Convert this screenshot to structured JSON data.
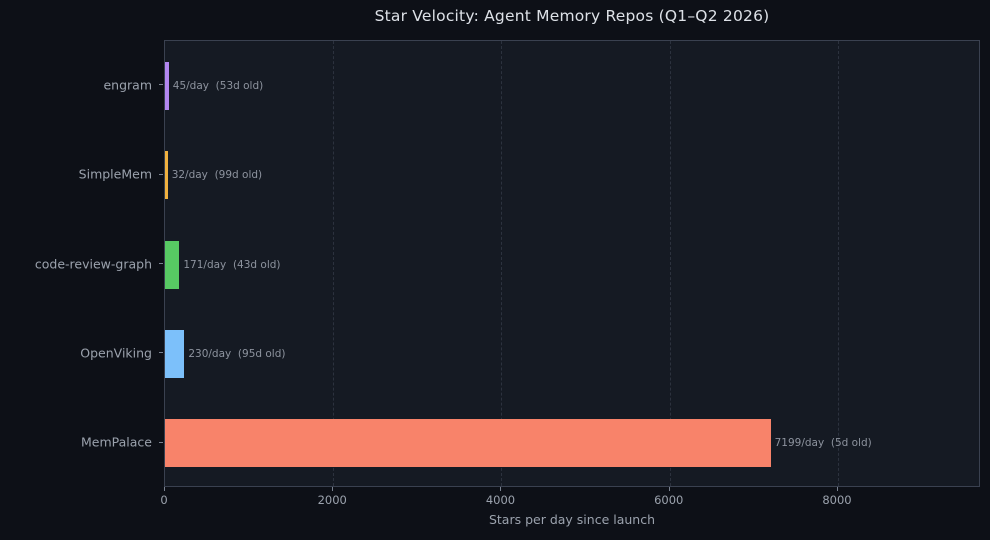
{
  "chart": {
    "title": "Star Velocity: Agent Memory Repos (Q1–Q2 2026)",
    "xlabel": "Stars per day since launch"
  },
  "chart_data": {
    "type": "bar",
    "orientation": "horizontal",
    "title": "Star Velocity: Agent Memory Repos (Q1–Q2 2026)",
    "xlabel": "Stars per day since launch",
    "ylabel": "",
    "categories": [
      "engram",
      "SimpleMem",
      "code-review-graph",
      "OpenViking",
      "MemPalace"
    ],
    "values": [
      45,
      32,
      171,
      230,
      7199
    ],
    "annotations": [
      "45/day  (53d old)",
      "32/day  (99d old)",
      "171/day  (43d old)",
      "230/day  (95d old)",
      "7199/day  (5d old)"
    ],
    "bars": [
      {
        "repo": "engram",
        "stars_per_day": 45,
        "age_days": 53,
        "color": "#b286f0"
      },
      {
        "repo": "SimpleMem",
        "stars_per_day": 32,
        "age_days": 99,
        "color": "#f0b13f"
      },
      {
        "repo": "code-review-graph",
        "stars_per_day": 171,
        "age_days": 43,
        "color": "#57c963"
      },
      {
        "repo": "OpenViking",
        "stars_per_day": 230,
        "age_days": 95,
        "color": "#7cc0fa"
      },
      {
        "repo": "MemPalace",
        "stars_per_day": 7199,
        "age_days": 5,
        "color": "#f8836a"
      }
    ],
    "xlim": [
      0,
      9700
    ],
    "xticks": [
      0,
      2000,
      4000,
      6000,
      8000
    ],
    "grid": "vertical-dashed",
    "legend": false,
    "theme": {
      "figure_bg": "#0d1017",
      "axes_bg": "#151a23",
      "spine_color": "#3a4150",
      "grid_color": "#2c323e",
      "title_color": "#dde1e7",
      "tick_label_color": "#9ba2ad",
      "annotation_color": "#8d939e"
    }
  }
}
